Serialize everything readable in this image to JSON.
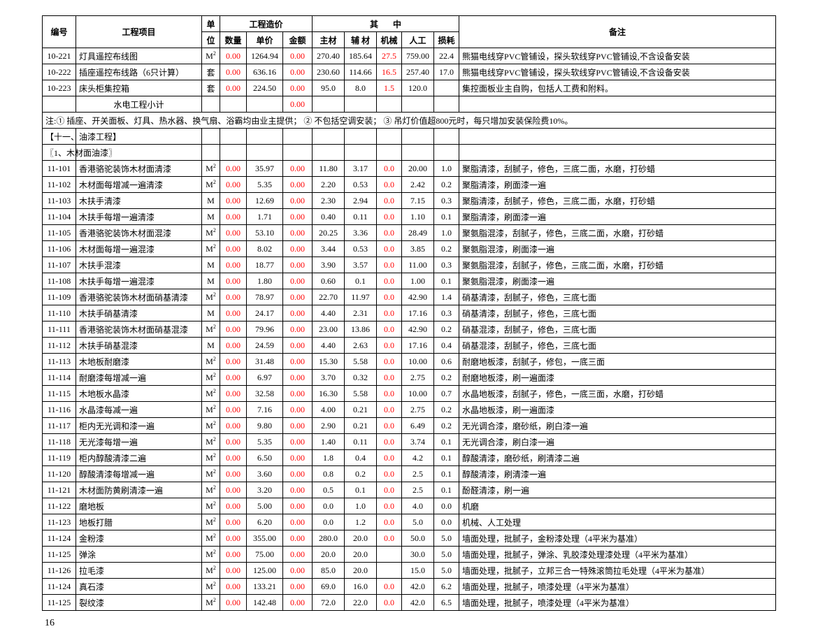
{
  "headers": {
    "col0": "编号",
    "col1": "工程项目",
    "col2_top": "单",
    "col2_bot": "位",
    "group_price": "工程造价",
    "col3": "数量",
    "col4": "单价",
    "col5": "金额",
    "group_mid_a": "其",
    "group_mid_b": "中",
    "col6": "主材",
    "col7": "辅 材",
    "col8": "机械",
    "col9": "人工",
    "col10": "损耗",
    "col11": "备注"
  },
  "subtotal": {
    "label": "水电工程小计",
    "amount": "0.00"
  },
  "note": "注:①  插座、开关面板、灯具、热水器、换气扇、浴霸均由业主提供；    ② 不包括空调安装；   ③ 吊灯价值超800元时，每只增加安装保险费10%。",
  "section1": "【十一、油漆工程】",
  "section2": "〖1、木材面油漆〗",
  "page_number": "16",
  "text_color": "#000000",
  "red_color": "#ff0000",
  "border_color": "#000000",
  "background_color": "#ffffff",
  "font_size_pt": 9,
  "rows": [
    {
      "id": "10-221",
      "name": "灯具遥控布线图",
      "unit": "M²",
      "qty": "0.00",
      "price": "1264.94",
      "amt": "0.00",
      "main": "270.40",
      "aux": "185.64",
      "mach": "27.5",
      "labor": "759.00",
      "loss": "22.4",
      "remark": "熊猫电线穿PVC管铺设，探头软线穿PVC管铺设,不含设备安装"
    },
    {
      "id": "10-222",
      "name": "插座遥控布线路（6只计算）",
      "unit": "套",
      "qty": "0.00",
      "price": "636.16",
      "amt": "0.00",
      "main": "230.60",
      "aux": "114.66",
      "mach": "16.5",
      "labor": "257.40",
      "loss": "17.0",
      "remark": "熊猫电线穿PVC管铺设，探头软线穿PVC管铺设,不含设备安装"
    },
    {
      "id": "10-223",
      "name": "床头柜集控箱",
      "unit": "套",
      "qty": "0.00",
      "price": "224.50",
      "amt": "0.00",
      "main": "95.0",
      "aux": "8.0",
      "mach": "1.5",
      "labor": "120.0",
      "loss": "",
      "remark": "集控面板业主自购，包括人工费和附料。"
    },
    {
      "id": "11-101",
      "name": "香港骆驼装饰木材面清漆",
      "unit": "M²",
      "qty": "0.00",
      "price": "35.97",
      "amt": "0.00",
      "main": "11.80",
      "aux": "3.17",
      "mach": "0.0",
      "labor": "20.00",
      "loss": "1.0",
      "remark": "聚脂清漆，刮腻子，修色，三底二面，水磨，打砂蜡"
    },
    {
      "id": "11-102",
      "name": "木材面每增减一遍清漆",
      "unit": "M²",
      "qty": "0.00",
      "price": "5.35",
      "amt": "0.00",
      "main": "2.20",
      "aux": "0.53",
      "mach": "0.0",
      "labor": "2.42",
      "loss": "0.2",
      "remark": "聚脂清漆，刷面漆一遍"
    },
    {
      "id": "11-103",
      "name": "木扶手清漆",
      "unit": "M",
      "qty": "0.00",
      "price": "12.69",
      "amt": "0.00",
      "main": "2.30",
      "aux": "2.94",
      "mach": "0.0",
      "labor": "7.15",
      "loss": "0.3",
      "remark": "聚脂清漆，刮腻子，修色，三底二面，水磨，打砂蜡"
    },
    {
      "id": "11-104",
      "name": "木扶手每增一遍清漆",
      "unit": "M",
      "qty": "0.00",
      "price": "1.71",
      "amt": "0.00",
      "main": "0.40",
      "aux": "0.11",
      "mach": "0.0",
      "labor": "1.10",
      "loss": "0.1",
      "remark": "聚脂清漆，刷面漆一遍"
    },
    {
      "id": "11-105",
      "name": "香港骆驼装饰木材面混漆",
      "unit": "M²",
      "qty": "0.00",
      "price": "53.10",
      "amt": "0.00",
      "main": "20.25",
      "aux": "3.36",
      "mach": "0.0",
      "labor": "28.49",
      "loss": "1.0",
      "remark": "聚氨脂混漆，刮腻子，修色，三底二面，水磨，打砂蜡"
    },
    {
      "id": "11-106",
      "name": "木材面每增一遍混漆",
      "unit": "M²",
      "qty": "0.00",
      "price": "8.02",
      "amt": "0.00",
      "main": "3.44",
      "aux": "0.53",
      "mach": "0.0",
      "labor": "3.85",
      "loss": "0.2",
      "remark": "聚氨脂混漆，刷面漆一遍"
    },
    {
      "id": "11-107",
      "name": "木扶手混漆",
      "unit": "M",
      "qty": "0.00",
      "price": "18.77",
      "amt": "0.00",
      "main": "3.90",
      "aux": "3.57",
      "mach": "0.0",
      "labor": "11.00",
      "loss": "0.3",
      "remark": "聚氨脂混漆，刮腻子，修色，三底二面，水磨，打砂蜡"
    },
    {
      "id": "11-108",
      "name": "木扶手每增一遍混漆",
      "unit": "M",
      "qty": "0.00",
      "price": "1.80",
      "amt": "0.00",
      "main": "0.60",
      "aux": "0.1",
      "mach": "0.0",
      "labor": "1.00",
      "loss": "0.1",
      "remark": "聚氨脂混漆，刷面漆一遍"
    },
    {
      "id": "11-109",
      "name": "香港骆驼装饰木材面硝基清漆",
      "unit": "M²",
      "qty": "0.00",
      "price": "78.97",
      "amt": "0.00",
      "main": "22.70",
      "aux": "11.97",
      "mach": "0.0",
      "labor": "42.90",
      "loss": "1.4",
      "remark": "硝基清漆，刮腻子，修色，三底七面"
    },
    {
      "id": "11-110",
      "name": "木扶手硝基清漆",
      "unit": "M",
      "qty": "0.00",
      "price": "24.17",
      "amt": "0.00",
      "main": "4.40",
      "aux": "2.31",
      "mach": "0.0",
      "labor": "17.16",
      "loss": "0.3",
      "remark": "硝基清漆，刮腻子，修色，三底七面"
    },
    {
      "id": "11-111",
      "name": "香港骆驼装饰木材面硝基混漆",
      "unit": "M²",
      "qty": "0.00",
      "price": "79.96",
      "amt": "0.00",
      "main": "23.00",
      "aux": "13.86",
      "mach": "0.0",
      "labor": "42.90",
      "loss": "0.2",
      "remark": "硝基混漆，刮腻子，修色，三底七面"
    },
    {
      "id": "11-112",
      "name": "木扶手硝基混漆",
      "unit": "M",
      "qty": "0.00",
      "price": "24.59",
      "amt": "0.00",
      "main": "4.40",
      "aux": "2.63",
      "mach": "0.0",
      "labor": "17.16",
      "loss": "0.4",
      "remark": "硝基混漆，刮腻子，修色，三底七面"
    },
    {
      "id": "11-113",
      "name": "木地板耐磨漆",
      "unit": "M²",
      "qty": "0.00",
      "price": "31.48",
      "amt": "0.00",
      "main": "15.30",
      "aux": "5.58",
      "mach": "0.0",
      "labor": "10.00",
      "loss": "0.6",
      "remark": "耐磨地板漆，刮腻子，修包，一底三面"
    },
    {
      "id": "11-114",
      "name": "耐磨漆每增减一遍",
      "unit": "M²",
      "qty": "0.00",
      "price": "6.97",
      "amt": "0.00",
      "main": "3.70",
      "aux": "0.32",
      "mach": "0.0",
      "labor": "2.75",
      "loss": "0.2",
      "remark": "耐磨地板漆，刷一遍面漆"
    },
    {
      "id": "11-115",
      "name": "木地板水晶漆",
      "unit": "M²",
      "qty": "0.00",
      "price": "32.58",
      "amt": "0.00",
      "main": "16.30",
      "aux": "5.58",
      "mach": "0.0",
      "labor": "10.00",
      "loss": "0.7",
      "remark": "水晶地板漆，刮腻子，修色，一底三面，水磨，打砂蜡"
    },
    {
      "id": "11-116",
      "name": "水晶漆每减一遍",
      "unit": "M²",
      "qty": "0.00",
      "price": "7.16",
      "amt": "0.00",
      "main": "4.00",
      "aux": "0.21",
      "mach": "0.0",
      "labor": "2.75",
      "loss": "0.2",
      "remark": "水晶地板漆，刷一遍面漆"
    },
    {
      "id": "11-117",
      "name": "柜内无光调和漆一遍",
      "unit": "M²",
      "qty": "0.00",
      "price": "9.80",
      "amt": "0.00",
      "main": "2.90",
      "aux": "0.21",
      "mach": "0.0",
      "labor": "6.49",
      "loss": "0.2",
      "remark": "无光调合漆，磨砂纸，刷白漆一遍"
    },
    {
      "id": "11-118",
      "name": "无光漆每增一遍",
      "unit": "M²",
      "qty": "0.00",
      "price": "5.35",
      "amt": "0.00",
      "main": "1.40",
      "aux": "0.11",
      "mach": "0.0",
      "labor": "3.74",
      "loss": "0.1",
      "remark": "无光调合漆，刷白漆一遍"
    },
    {
      "id": "11-119",
      "name": "柜内醇酸清漆二遍",
      "unit": "M²",
      "qty": "0.00",
      "price": "6.50",
      "amt": "0.00",
      "main": "1.8",
      "aux": "0.4",
      "mach": "0.0",
      "labor": "4.2",
      "loss": "0.1",
      "remark": "醇酸清漆，磨砂纸，刷清漆二遍"
    },
    {
      "id": "11-120",
      "name": "醇酸清漆每增减一遍",
      "unit": "M²",
      "qty": "0.00",
      "price": "3.60",
      "amt": "0.00",
      "main": "0.8",
      "aux": "0.2",
      "mach": "0.0",
      "labor": "2.5",
      "loss": "0.1",
      "remark": "醇酸清漆，刷清漆一遍"
    },
    {
      "id": "11-121",
      "name": "木材面防黄刷清漆一遍",
      "unit": "M²",
      "qty": "0.00",
      "price": "3.20",
      "amt": "0.00",
      "main": "0.5",
      "aux": "0.1",
      "mach": "0.0",
      "labor": "2.5",
      "loss": "0.1",
      "remark": "酚醛清漆，刷一遍"
    },
    {
      "id": "11-122",
      "name": "磨地板",
      "unit": "M²",
      "qty": "0.00",
      "price": "5.00",
      "amt": "0.00",
      "main": "0.0",
      "aux": "1.0",
      "mach": "0.0",
      "labor": "4.0",
      "loss": "0.0",
      "remark": "机磨"
    },
    {
      "id": "11-123",
      "name": "地板打腊",
      "unit": "M²",
      "qty": "0.00",
      "price": "6.20",
      "amt": "0.00",
      "main": "0.0",
      "aux": "1.2",
      "mach": "0.0",
      "labor": "5.0",
      "loss": "0.0",
      "remark": "机械、人工处理"
    },
    {
      "id": "11-124",
      "name": "金粉漆",
      "unit": "M²",
      "qty": "0.00",
      "price": "355.00",
      "amt": "0.00",
      "main": "280.0",
      "aux": "20.0",
      "mach": "0.0",
      "labor": "50.0",
      "loss": "5.0",
      "remark": "墙面处理，批腻子，金粉漆处理（4平米为基准）"
    },
    {
      "id": "11-125",
      "name": "弹涂",
      "unit": "M²",
      "qty": "0.00",
      "price": "75.00",
      "amt": "0.00",
      "main": "20.0",
      "aux": "20.0",
      "mach": "",
      "labor": "30.0",
      "loss": "5.0",
      "remark": "墙面处理，批腻子，弹涂、乳胶漆处理漆处理（4平米为基准）"
    },
    {
      "id": "11-126",
      "name": "拉毛漆",
      "unit": "M²",
      "qty": "0.00",
      "price": "125.00",
      "amt": "0.00",
      "main": "85.0",
      "aux": "20.0",
      "mach": "",
      "labor": "15.0",
      "loss": "5.0",
      "remark": "墙面处理，批腻子，立邦三合一特殊滚筒拉毛处理（4平米为基准）"
    },
    {
      "id": "11-124",
      "name": "真石漆",
      "unit": "M²",
      "qty": "0.00",
      "price": "133.21",
      "amt": "0.00",
      "main": "69.0",
      "aux": "16.0",
      "mach": "0.0",
      "labor": "42.0",
      "loss": "6.2",
      "remark": "墙面处理，批腻子，喷漆处理（4平米为基准）"
    },
    {
      "id": "11-125",
      "name": "裂纹漆",
      "unit": "M²",
      "qty": "0.00",
      "price": "142.48",
      "amt": "0.00",
      "main": "72.0",
      "aux": "22.0",
      "mach": "0.0",
      "labor": "42.0",
      "loss": "6.5",
      "remark": "墙面处理，批腻子，喷漆处理（4平米为基准）"
    }
  ]
}
